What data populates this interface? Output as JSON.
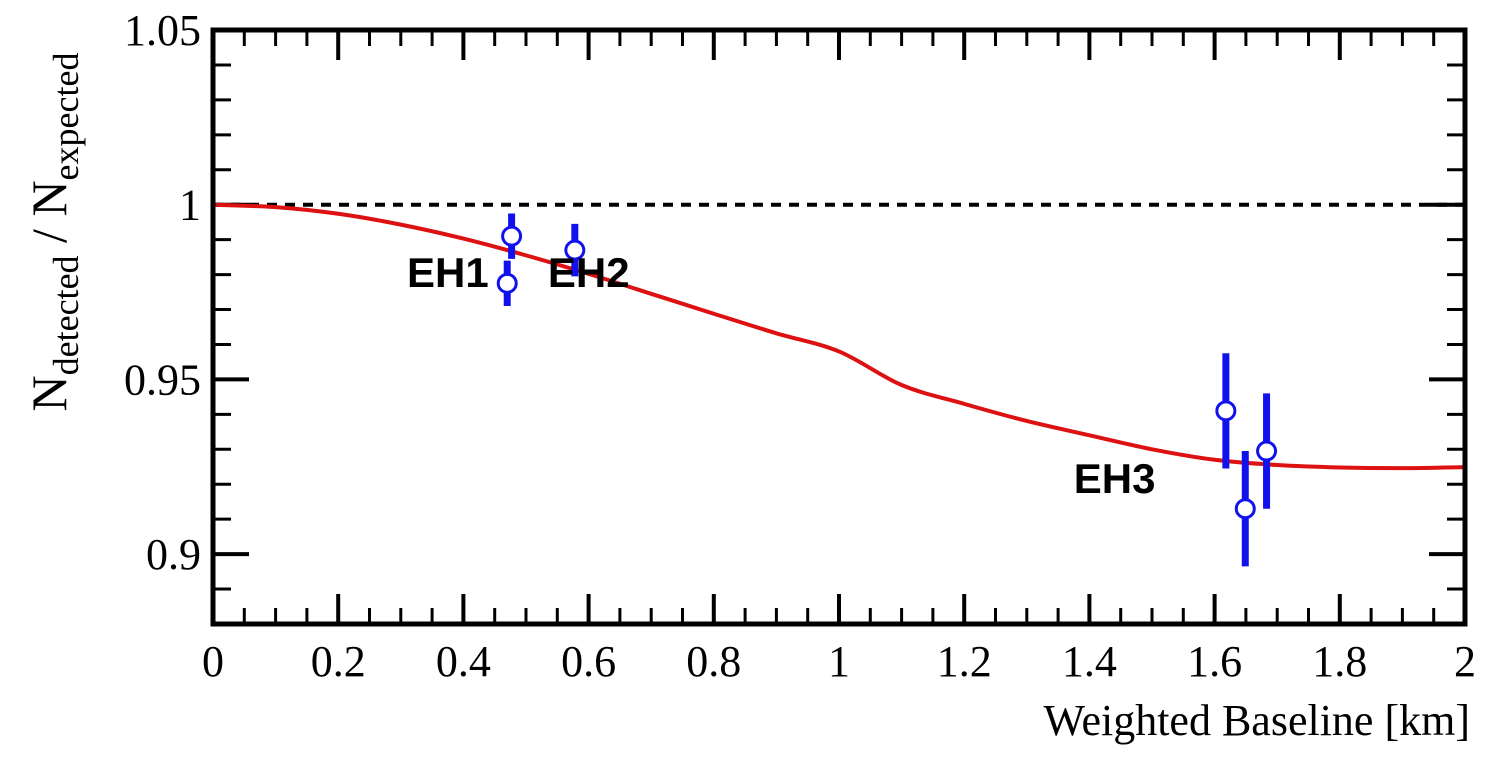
{
  "chart_data": {
    "type": "scatter",
    "xlabel": "Weighted Baseline [km]",
    "ylabel": {
      "base": "N",
      "numerator_sub": "detected",
      "separator": " / ",
      "denominator_sub": "expected"
    },
    "xlim": [
      0,
      2
    ],
    "ylim": [
      0.88,
      1.05
    ],
    "x_ticks": [
      "0",
      "0.2",
      "0.4",
      "0.6",
      "0.8",
      "1",
      "1.2",
      "1.4",
      "1.6",
      "1.8",
      "2"
    ],
    "y_ticks": [
      "0.9",
      "0.95",
      "1",
      "1.05"
    ],
    "reference_line": {
      "y": 1.0,
      "style": "dashed",
      "color": "#000000"
    },
    "fit_curve": {
      "color": "#dd1111",
      "x": [
        0,
        0.1,
        0.2,
        0.3,
        0.4,
        0.5,
        0.6,
        0.7,
        0.8,
        0.9,
        1.0,
        1.1,
        1.2,
        1.3,
        1.4,
        1.5,
        1.6,
        1.7,
        1.8,
        1.9,
        2.0
      ],
      "y": [
        1.0,
        0.9993,
        0.9974,
        0.9943,
        0.9903,
        0.9855,
        0.9802,
        0.9745,
        0.9688,
        0.9632,
        0.958,
        0.9484,
        0.943,
        0.9381,
        0.934,
        0.93,
        0.927,
        0.9255,
        0.9248,
        0.9246,
        0.9249
      ]
    },
    "series": [
      {
        "color": "#1111ee",
        "points": [
          {
            "x": 0.47,
            "y": 0.9775,
            "err": 0.0065
          },
          {
            "x": 0.477,
            "y": 0.991,
            "err": 0.0065
          },
          {
            "x": 0.578,
            "y": 0.987,
            "err": 0.0075
          },
          {
            "x": 1.618,
            "y": 0.941,
            "err": 0.0165
          },
          {
            "x": 1.649,
            "y": 0.913,
            "err": 0.0165
          },
          {
            "x": 1.683,
            "y": 0.9295,
            "err": 0.0165
          }
        ]
      }
    ],
    "annotations": [
      {
        "text": "EH1",
        "x": 0.31,
        "y": 0.9765
      },
      {
        "text": "EH2",
        "x": 0.535,
        "y": 0.9765
      },
      {
        "text": "EH3",
        "x": 1.375,
        "y": 0.9175
      }
    ]
  }
}
